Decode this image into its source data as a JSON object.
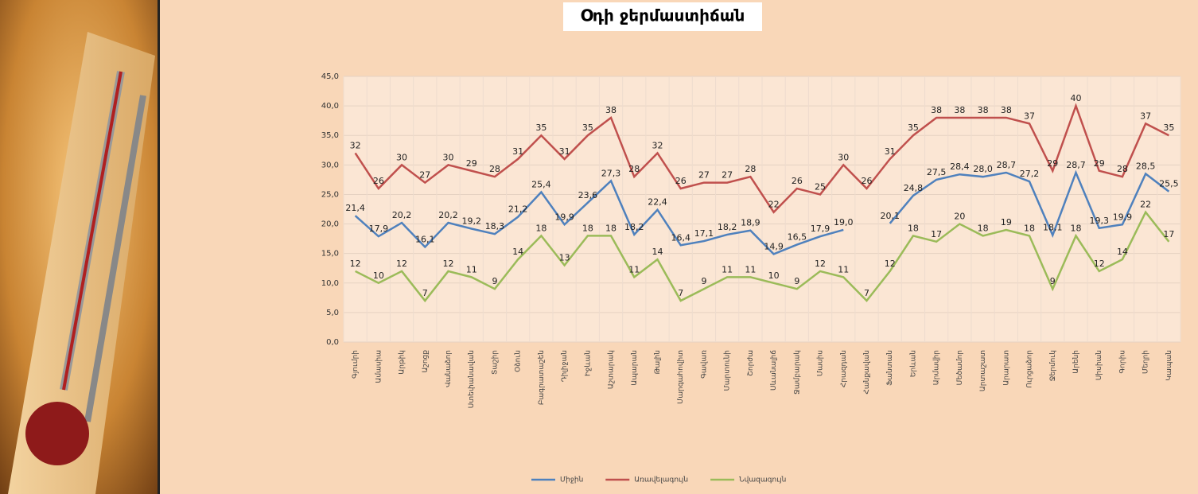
{
  "chart_data": {
    "type": "line",
    "title": "Օդի ջերմաստիճան",
    "categories": [
      "Գյումրի",
      "Ամասիա",
      "Արթիկ",
      "Աշոցք",
      "Վանաձոր",
      "Ստեփանավան",
      "Տաշիր",
      "Օձուն",
      "Բագրատաշեն",
      "Դիլիջան",
      "Իջևան",
      "Աշտարակ",
      "Ապարան",
      "Թալին",
      "Մարգահովիտ",
      "Գավառ",
      "Մարտունի",
      "Շորժա",
      "Սևանալիճ",
      "Ջամբարակ",
      "Մասիս",
      "Հրազդան",
      "Հանքավան",
      "Ֆանտան",
      "Երևան",
      "Արմավիր",
      "Մեծամոր",
      "Արտաշատ",
      "Արարատ",
      "Ուրցաձոր",
      "Ջերմուկ",
      "Արենի",
      "Սիսիան",
      "Գորիս",
      "Մեղրի",
      "Կապան"
    ],
    "series": [
      {
        "name": "Միջին",
        "color": "#4f81bd",
        "values": [
          21.4,
          17.9,
          20.2,
          16.1,
          20.2,
          19.2,
          18.3,
          21.2,
          25.4,
          19.9,
          23.6,
          27.3,
          18.2,
          22.4,
          16.4,
          17.1,
          18.2,
          18.9,
          14.9,
          16.5,
          17.9,
          19.0,
          null,
          20.1,
          24.8,
          27.5,
          28.4,
          28.0,
          28.7,
          27.2,
          18.1,
          28.7,
          19.3,
          19.9,
          28.5,
          25.5
        ],
        "value_labels": [
          "21,4",
          "17,9",
          "20,2",
          "16,1",
          "20,2",
          "19,2",
          "18,3",
          "21,2",
          "25,4",
          "19,9",
          "23,6",
          "27,3",
          "18,2",
          "22,4",
          "16,4",
          "17,1",
          "18,2",
          "18,9",
          "14,9",
          "16,5",
          "17,9",
          "19,0",
          null,
          "20,1",
          "24,8",
          "27,5",
          "28,4",
          "28,0",
          "28,7",
          "27,2",
          "18,1",
          "28,7",
          "19,3",
          "19,9",
          "28,5",
          "25,5"
        ]
      },
      {
        "name": "Առավելագույն",
        "color": "#c0504d",
        "values": [
          32,
          26,
          30,
          27,
          30,
          29,
          28,
          31,
          35,
          31,
          35,
          38,
          28,
          32,
          26,
          27,
          27,
          28,
          22,
          26,
          25,
          30,
          26,
          31,
          35,
          38,
          38,
          38,
          38,
          37,
          29,
          40,
          29,
          28,
          37,
          35
        ]
      },
      {
        "name": "Նվազագույն",
        "color": "#9bbb59",
        "values": [
          12,
          10,
          12,
          7,
          12,
          11,
          9,
          14,
          18,
          13,
          18,
          18,
          11,
          14,
          7,
          9,
          11,
          11,
          10,
          9,
          12,
          11,
          7,
          12,
          18,
          17,
          20,
          18,
          19,
          18,
          9,
          18,
          12,
          14,
          22,
          17
        ]
      }
    ],
    "ylim": [
      0,
      45
    ],
    "yticks": [
      {
        "value": 0,
        "label": "0,0"
      },
      {
        "value": 5,
        "label": "5,0"
      },
      {
        "value": 10,
        "label": "10,0"
      },
      {
        "value": 15,
        "label": "15,0"
      },
      {
        "value": 20,
        "label": "20,0"
      },
      {
        "value": 25,
        "label": "25,0"
      },
      {
        "value": 30,
        "label": "30,0"
      },
      {
        "value": 35,
        "label": "35,0"
      },
      {
        "value": 40,
        "label": "40,0"
      },
      {
        "value": 45,
        "label": "45,0"
      }
    ],
    "grid": true,
    "legend": "bottom"
  }
}
